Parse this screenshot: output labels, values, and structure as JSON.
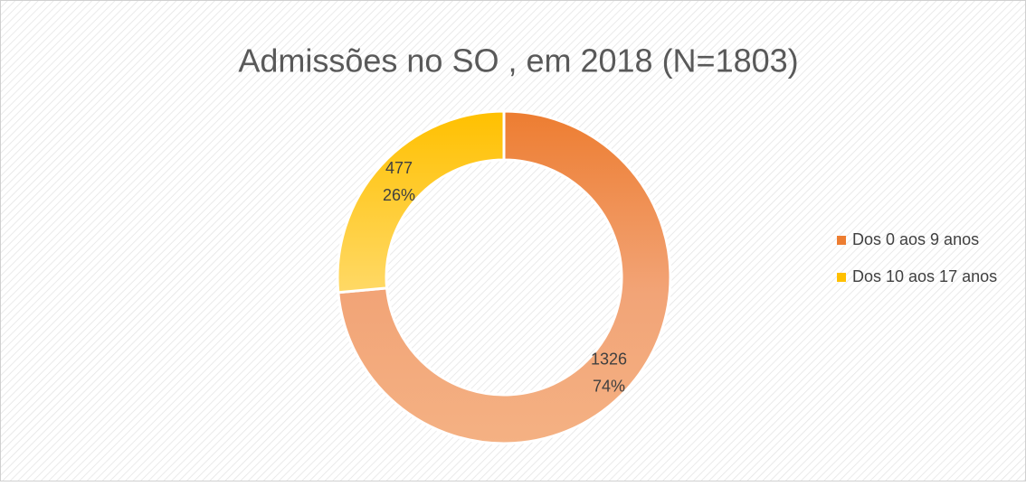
{
  "chart_data": {
    "type": "donut",
    "title": "Admissões no SO , em 2018  (N=1803)",
    "categories": [
      "Dos 0 aos 9 anos",
      "Dos 10 aos 17 anos"
    ],
    "values": [
      1326,
      477
    ],
    "percent_labels": [
      "74%",
      "26%"
    ],
    "colors": [
      "#ED7D31",
      "#FFC000"
    ],
    "legend": "right"
  }
}
